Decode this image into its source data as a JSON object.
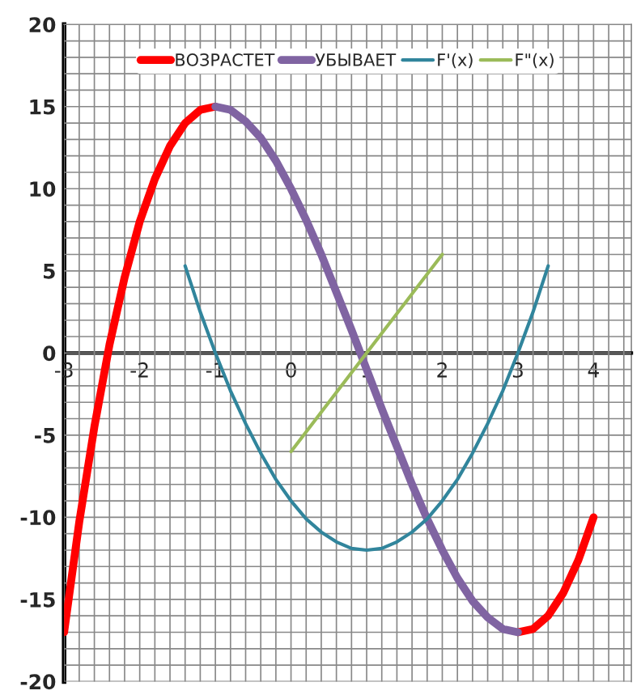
{
  "chart_data": {
    "type": "line",
    "series": [
      {
        "name": "ВОЗРАСТЕТ",
        "color": "#ff0000",
        "x": [
          -3,
          -2.8,
          -2.6,
          -2.4,
          -2.2,
          -2,
          -1.8,
          -1.6,
          -1.4,
          -1.2,
          -1,
          2,
          3,
          3.2,
          3.4,
          3.6,
          3.8,
          4
        ],
        "values": [
          -17,
          -10.3,
          -4.5,
          0.5,
          4.6,
          8,
          10.6,
          12.6,
          14.0,
          14.8,
          15,
          null,
          -17,
          -16.8,
          -16.0,
          -14.6,
          -12.6,
          -10
        ]
      },
      {
        "name": "УБЫВАЕТ",
        "color": "#8064a2",
        "x": [
          -1,
          -0.8,
          -0.6,
          -0.4,
          -0.2,
          0,
          0.2,
          0.4,
          0.6,
          0.8,
          1,
          1.2,
          1.4,
          1.6,
          1.8,
          2,
          2.2,
          2.4,
          2.6,
          2.8,
          3
        ],
        "values": [
          15,
          14.8,
          14.1,
          13.1,
          11.7,
          10,
          8.1,
          6.0,
          3.7,
          1.4,
          -1,
          -3.4,
          -5.7,
          -8.0,
          -10.1,
          -12,
          -13.7,
          -15.1,
          -16.1,
          -16.8,
          -17
        ]
      },
      {
        "name": "F'(x)",
        "color": "#31859c",
        "x": [
          -1.4,
          -1.2,
          -1,
          -0.8,
          -0.6,
          -0.4,
          -0.2,
          0,
          0.2,
          0.4,
          0.6,
          0.8,
          1,
          1.2,
          1.4,
          1.6,
          1.8,
          2,
          2.2,
          2.4,
          2.6,
          2.8,
          3,
          3.2,
          3.4
        ],
        "values": [
          5.3,
          2.5,
          0,
          -2.3,
          -4.3,
          -6.1,
          -7.7,
          -9,
          -10.1,
          -10.9,
          -11.5,
          -11.9,
          -12,
          -11.9,
          -11.5,
          -10.9,
          -10.1,
          -9,
          -7.7,
          -6.1,
          -4.3,
          -2.3,
          0,
          2.5,
          5.3
        ]
      },
      {
        "name": "F\"(x)",
        "color": "#9bbb59",
        "x": [
          0,
          1,
          2
        ],
        "values": [
          -6,
          0,
          6
        ]
      }
    ],
    "xlim": [
      -3,
      4.5
    ],
    "xticks": [
      -3,
      -2,
      -1,
      0,
      1,
      2,
      3,
      4
    ],
    "ylim": [
      -20,
      20
    ],
    "yticks": [
      -20,
      -15,
      -10,
      -5,
      0,
      5,
      10,
      15,
      20
    ],
    "grid": true,
    "legend": "top",
    "marker": "none",
    "line_style": "solid"
  }
}
